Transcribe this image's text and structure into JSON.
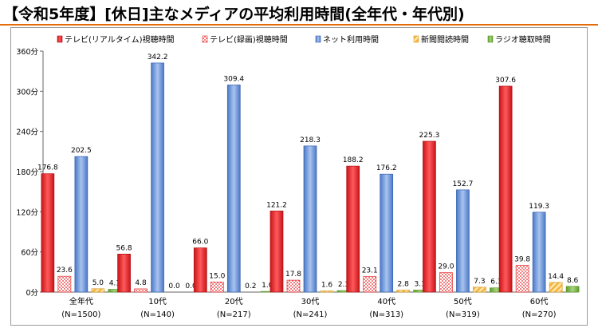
{
  "page": {
    "title": "【令和5年度】[休日]主なメディアの平均利用時間(全年代・年代別)"
  },
  "chart_data": {
    "type": "bar",
    "unit": "分",
    "ylim": [
      0,
      360
    ],
    "yticks": [
      0,
      60,
      120,
      180,
      240,
      300,
      360
    ],
    "ytick_labels": [
      "0分",
      "60分",
      "120分",
      "180分",
      "240分",
      "300分",
      "360分"
    ],
    "legend_position": "top",
    "grid": false,
    "categories": [
      "全年代",
      "10代",
      "20代",
      "30代",
      "40代",
      "50代",
      "60代"
    ],
    "category_sublabels": [
      "(N=1500)",
      "(N=140)",
      "(N=217)",
      "(N=241)",
      "(N=313)",
      "(N=319)",
      "(N=270)"
    ],
    "series": [
      {
        "name": "テレビ(リアルタイム)視聴時間",
        "color": "#e8292b",
        "pattern": "solid-red",
        "values": [
          176.8,
          56.8,
          66.0,
          121.2,
          188.2,
          225.3,
          307.6
        ],
        "labels": [
          "176.8",
          "56.8",
          "66.0",
          "121.2",
          "188.2",
          "225.3",
          "307.6"
        ]
      },
      {
        "name": "テレビ(録画)視聴時間",
        "color": "#f08080",
        "pattern": "dots",
        "values": [
          23.6,
          4.8,
          15.0,
          17.8,
          23.1,
          29.0,
          39.8
        ],
        "labels": [
          "23.6",
          "4.8",
          "15.0",
          "17.8",
          "23.1",
          "29.0",
          "39.8"
        ]
      },
      {
        "name": "ネット利用時間",
        "color": "#5b8bd9",
        "pattern": "solid-blue",
        "values": [
          202.5,
          342.2,
          309.4,
          218.3,
          176.2,
          152.7,
          119.3
        ],
        "labels": [
          "202.5",
          "342.2",
          "309.4",
          "218.3",
          "176.2",
          "152.7",
          "119.3"
        ]
      },
      {
        "name": "新聞閲読時間",
        "color": "#f5b43a",
        "pattern": "stripes",
        "values": [
          5.0,
          0.0,
          0.2,
          1.6,
          2.8,
          7.3,
          14.4
        ],
        "labels": [
          "5.0",
          "0.0",
          "0.2",
          "1.6",
          "2.8",
          "7.3",
          "14.4"
        ]
      },
      {
        "name": "ラジオ聴取時間",
        "color": "#7ab648",
        "pattern": "solid-green",
        "values": [
          4.1,
          0.0,
          1.0,
          2.3,
          3.1,
          6.3,
          8.6
        ],
        "labels": [
          "4.1",
          "0.0",
          "1.0",
          "2.3",
          "3.1",
          "6.3",
          "8.6"
        ]
      }
    ]
  }
}
